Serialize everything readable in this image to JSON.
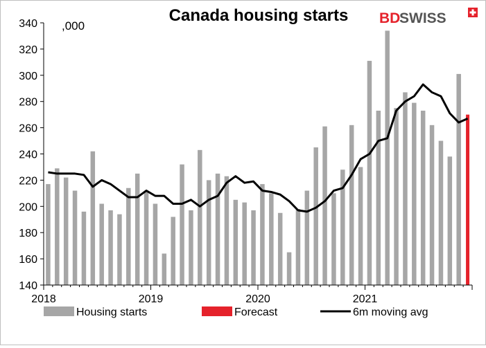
{
  "chart_data": {
    "type": "bar",
    "title": "Canada housing starts",
    "unit_label": ",000",
    "ylim": [
      140,
      340
    ],
    "yticks": [
      140,
      160,
      180,
      200,
      220,
      240,
      260,
      280,
      300,
      320,
      340
    ],
    "xtick_labels": [
      "2018",
      "2019",
      "2020",
      "2021"
    ],
    "grid": false,
    "legend_position": "bottom",
    "categories": [
      "2018-01",
      "2018-02",
      "2018-03",
      "2018-04",
      "2018-05",
      "2018-06",
      "2018-07",
      "2018-08",
      "2018-09",
      "2018-10",
      "2018-11",
      "2018-12",
      "2019-01",
      "2019-02",
      "2019-03",
      "2019-04",
      "2019-05",
      "2019-06",
      "2019-07",
      "2019-08",
      "2019-09",
      "2019-10",
      "2019-11",
      "2019-12",
      "2020-01",
      "2020-02",
      "2020-03",
      "2020-04",
      "2020-05",
      "2020-06",
      "2020-07",
      "2020-08",
      "2020-09",
      "2020-10",
      "2020-11",
      "2020-12",
      "2021-01",
      "2021-02",
      "2021-03",
      "2021-04",
      "2021-05",
      "2021-06",
      "2021-07",
      "2021-08",
      "2021-09",
      "2021-10",
      "2021-11",
      "2021-12"
    ],
    "series": [
      {
        "name": "Housing starts",
        "kind": "bar",
        "color": "#a6a6a6",
        "values": [
          217,
          229,
          222,
          212,
          196,
          242,
          202,
          197,
          194,
          214,
          225,
          212,
          202,
          164,
          192,
          232,
          197,
          243,
          220,
          225,
          223,
          205,
          203,
          197,
          217,
          210,
          195,
          165,
          198,
          212,
          245,
          261,
          210,
          228,
          262,
          230,
          311,
          273,
          334,
          275,
          287,
          279,
          273,
          262,
          250,
          238,
          301,
          null
        ]
      },
      {
        "name": "Forecast",
        "kind": "bar",
        "color": "#e5222b",
        "values": [
          null,
          null,
          null,
          null,
          null,
          null,
          null,
          null,
          null,
          null,
          null,
          null,
          null,
          null,
          null,
          null,
          null,
          null,
          null,
          null,
          null,
          null,
          null,
          null,
          null,
          null,
          null,
          null,
          null,
          null,
          null,
          null,
          null,
          null,
          null,
          null,
          null,
          null,
          null,
          null,
          null,
          null,
          null,
          null,
          null,
          null,
          null,
          270
        ]
      },
      {
        "name": "6m moving avg",
        "kind": "line",
        "color": "#000000",
        "values": [
          226,
          225,
          225,
          225,
          224,
          215,
          220,
          217,
          212,
          207,
          207,
          212,
          208,
          208,
          202,
          202,
          205,
          200,
          205,
          208,
          218,
          223,
          218,
          219,
          212,
          211,
          209,
          204,
          197,
          196,
          199,
          204,
          212,
          214,
          224,
          236,
          240,
          250,
          252,
          273,
          280,
          284,
          293,
          287,
          284,
          271,
          264,
          267
        ]
      }
    ]
  },
  "brand": {
    "bd": "BD",
    "swiss": "SWISS",
    "accent_color": "#e5222b"
  }
}
